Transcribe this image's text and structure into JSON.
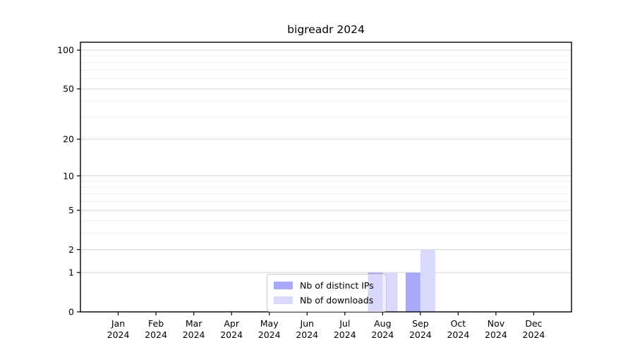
{
  "chart_data": {
    "type": "bar",
    "title": "bigreadr 2024",
    "categories": [
      "Jan 2024",
      "Feb 2024",
      "Mar 2024",
      "Apr 2024",
      "May 2024",
      "Jun 2024",
      "Jul 2024",
      "Aug 2024",
      "Sep 2024",
      "Oct 2024",
      "Nov 2024",
      "Dec 2024"
    ],
    "series": [
      {
        "name": "Nb of distinct IPs",
        "color": "#a9a9f9",
        "values": [
          0,
          0,
          0,
          0,
          0,
          0,
          0,
          1,
          1,
          0,
          0,
          0
        ]
      },
      {
        "name": "Nb of downloads",
        "color": "#d9d9fb",
        "values": [
          0,
          0,
          0,
          0,
          0,
          0,
          0,
          1,
          2,
          0,
          0,
          0
        ]
      }
    ],
    "xlabel": "",
    "ylabel": "",
    "yscale": "log1p",
    "ylim": [
      0,
      115
    ],
    "y_ticks": [
      0,
      1,
      2,
      5,
      10,
      20,
      50,
      100
    ],
    "y_minor_gridlines": [
      3,
      4,
      6,
      7,
      8,
      9,
      30,
      40,
      60,
      70,
      80,
      90
    ],
    "grid": "horizontal",
    "legend_position": "inside-bottom-center"
  },
  "colors": {
    "axis": "#000000",
    "tick_label": "#000000",
    "major_grid": "#d6d6d6",
    "minor_grid": "#efefef",
    "legend_border": "#c9c9c9"
  }
}
